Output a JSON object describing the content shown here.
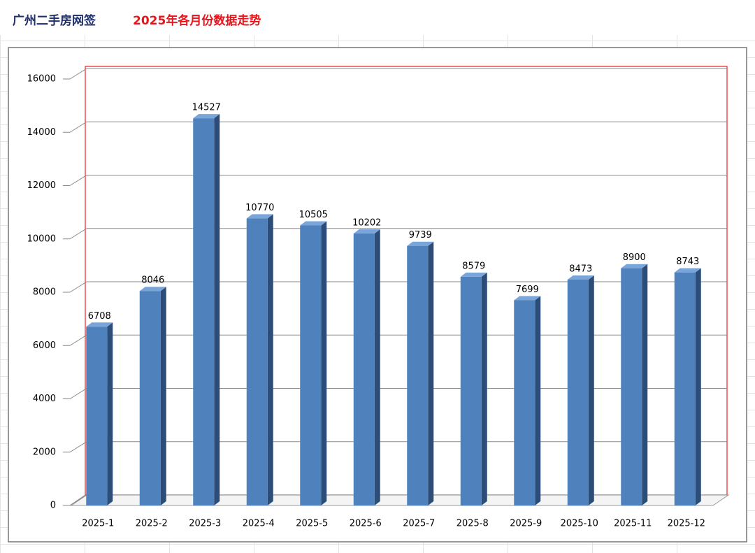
{
  "chart_data": {
    "type": "bar",
    "title": "广州二手房网签",
    "subtitle": "2025年各月份数据走势",
    "categories": [
      "2025-1",
      "2025-2",
      "2025-3",
      "2025-4",
      "2025-5",
      "2025-6",
      "2025-7",
      "2025-8",
      "2025-9",
      "2025-10",
      "2025-11",
      "2025-12"
    ],
    "values": [
      6708,
      8046,
      14527,
      10770,
      10505,
      10202,
      9739,
      8579,
      7699,
      8473,
      8900,
      8743
    ],
    "color": "#4f81bd",
    "ylim": [
      0,
      16000
    ],
    "yticks": [
      0,
      2000,
      4000,
      6000,
      8000,
      10000,
      12000,
      14000,
      16000
    ],
    "grid": true
  }
}
